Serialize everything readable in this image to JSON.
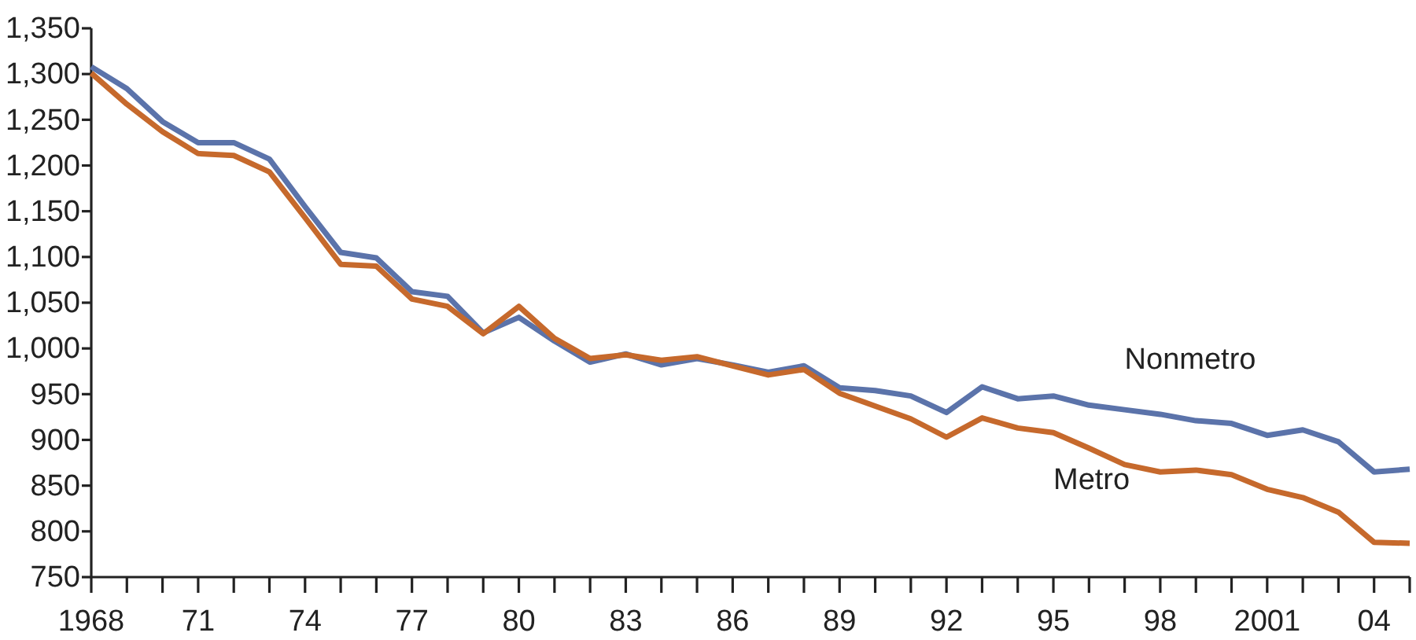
{
  "chart_data": {
    "type": "line",
    "x": [
      1968,
      1969,
      1970,
      1971,
      1972,
      1973,
      1974,
      1975,
      1976,
      1977,
      1978,
      1979,
      1980,
      1981,
      1982,
      1983,
      1984,
      1985,
      1986,
      1987,
      1988,
      1989,
      1990,
      1991,
      1992,
      1993,
      1994,
      1995,
      1996,
      1997,
      1998,
      1999,
      2000,
      2001,
      2002,
      2003,
      2004,
      2005
    ],
    "series": [
      {
        "name": "Nonmetro",
        "color": "#5b73aa",
        "values": [
          1308,
          1284,
          1248,
          1225,
          1225,
          1207,
          1155,
          1105,
          1099,
          1062,
          1057,
          1017,
          1034,
          1008,
          985,
          994,
          982,
          989,
          982,
          974,
          981,
          957,
          954,
          948,
          930,
          958,
          945,
          948,
          938,
          933,
          928,
          921,
          918,
          905,
          911,
          898,
          865,
          868
        ]
      },
      {
        "name": "Metro",
        "color": "#c6692c",
        "values": [
          1301,
          1267,
          1237,
          1213,
          1211,
          1193,
          1143,
          1092,
          1090,
          1054,
          1046,
          1016,
          1046,
          1011,
          989,
          993,
          987,
          991,
          981,
          971,
          977,
          951,
          937,
          923,
          903,
          924,
          913,
          908,
          891,
          873,
          865,
          867,
          862,
          846,
          837,
          821,
          788,
          787
        ]
      }
    ],
    "xlim": [
      1968,
      2005
    ],
    "xticks": [
      1968,
      {
        "value": 1969,
        "label": null
      },
      {
        "value": 1970,
        "label": null
      },
      {
        "value": 1971,
        "label": "71"
      },
      {
        "value": 1972,
        "label": null
      },
      {
        "value": 1973,
        "label": null
      },
      {
        "value": 1974,
        "label": "74"
      },
      {
        "value": 1975,
        "label": null
      },
      {
        "value": 1976,
        "label": null
      },
      {
        "value": 1977,
        "label": "77"
      },
      {
        "value": 1978,
        "label": null
      },
      {
        "value": 1979,
        "label": null
      },
      {
        "value": 1980,
        "label": "80"
      },
      {
        "value": 1981,
        "label": null
      },
      {
        "value": 1982,
        "label": null
      },
      {
        "value": 1983,
        "label": "83"
      },
      {
        "value": 1984,
        "label": null
      },
      {
        "value": 1985,
        "label": null
      },
      {
        "value": 1986,
        "label": "86"
      },
      {
        "value": 1987,
        "label": null
      },
      {
        "value": 1988,
        "label": null
      },
      {
        "value": 1989,
        "label": "89"
      },
      {
        "value": 1990,
        "label": null
      },
      {
        "value": 1991,
        "label": null
      },
      {
        "value": 1992,
        "label": "92"
      },
      {
        "value": 1993,
        "label": null
      },
      {
        "value": 1994,
        "label": null
      },
      {
        "value": 1995,
        "label": "95"
      },
      {
        "value": 1996,
        "label": null
      },
      {
        "value": 1997,
        "label": null
      },
      {
        "value": 1998,
        "label": "98"
      },
      {
        "value": 1999,
        "label": null
      },
      {
        "value": 2000,
        "label": null
      },
      {
        "value": 2001,
        "label": "2001"
      },
      {
        "value": 2002,
        "label": null
      },
      {
        "value": 2003,
        "label": null
      },
      {
        "value": 2004,
        "label": "04"
      },
      {
        "value": 2005,
        "label": null
      }
    ],
    "ylim": [
      750,
      1350
    ],
    "yticks": [
      {
        "value": 750,
        "label": "750"
      },
      {
        "value": 800,
        "label": "800"
      },
      {
        "value": 850,
        "label": "850"
      },
      {
        "value": 900,
        "label": "900"
      },
      {
        "value": 950,
        "label": "950"
      },
      {
        "value": 1000,
        "label": "1,000"
      },
      {
        "value": 1050,
        "label": "1,050"
      },
      {
        "value": 1100,
        "label": "1,100"
      },
      {
        "value": 1150,
        "label": "1,150"
      },
      {
        "value": 1200,
        "label": "1,200"
      },
      {
        "value": 1250,
        "label": "1,250"
      },
      {
        "value": 1300,
        "label": "1,300"
      },
      {
        "value": 1350,
        "label": "1,350"
      }
    ],
    "grid": false,
    "legend": false,
    "marker": "none",
    "line_style": "solid"
  }
}
